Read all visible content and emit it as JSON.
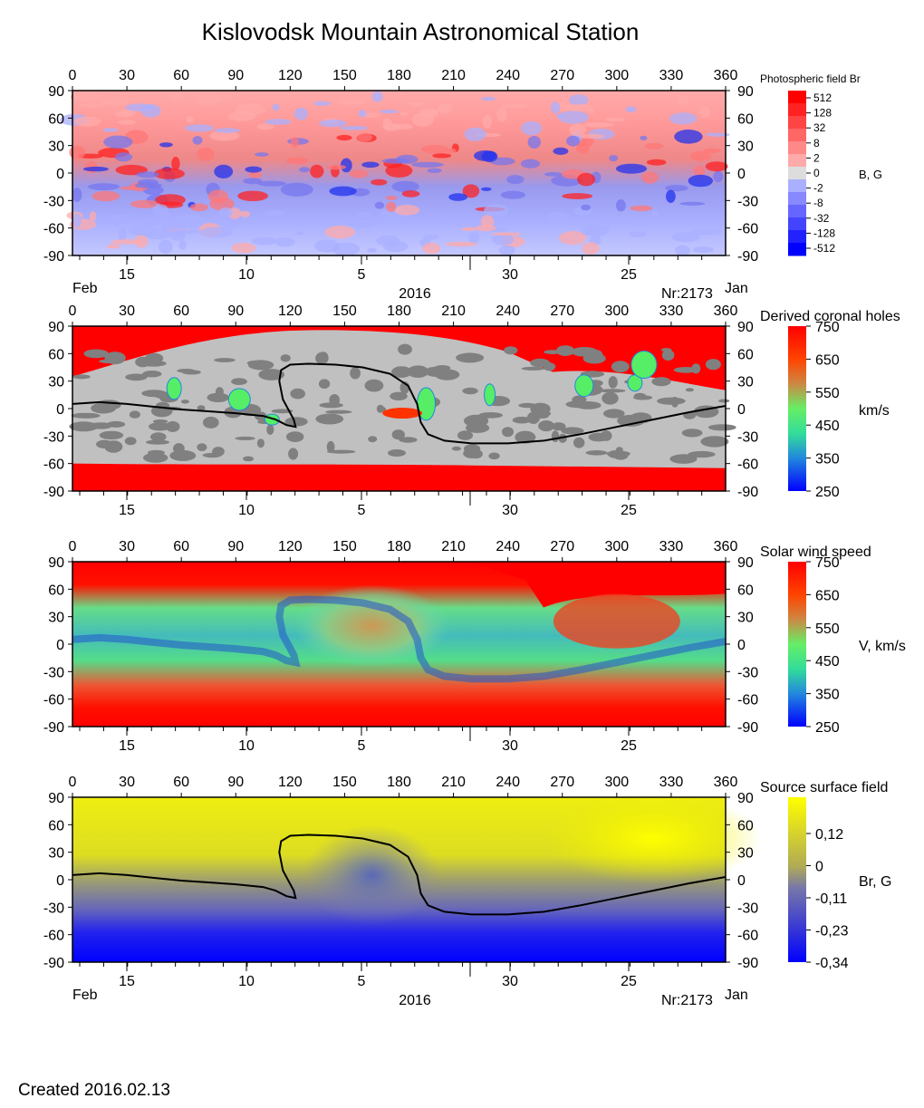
{
  "title": "Kislovodsk Mountain Astronomical Station",
  "footer": {
    "created": "Created  2016.02.13"
  },
  "colors": {
    "red": "#ff0000",
    "blue": "#0000ff",
    "light_gray": "#c0c0c0",
    "dark_gray": "#808080",
    "yellow": "#ffff00",
    "green": "#55ee66",
    "cyan": "#22bbcc",
    "pink": "#ffaaaa",
    "lilac": "#aab0ff"
  },
  "chart_data": [
    {
      "type": "heatmap",
      "title": "Photospheric field Br",
      "unit_label": "B, G",
      "x_top_ticks": [
        "0",
        "30",
        "60",
        "90",
        "120",
        "150",
        "180",
        "210",
        "240",
        "270",
        "300",
        "330",
        "360"
      ],
      "x_range": [
        0,
        360
      ],
      "y_ticks": [
        "90",
        "60",
        "30",
        "0",
        "-30",
        "-60",
        "-90"
      ],
      "y_range": [
        -90,
        90
      ],
      "date_ticks": [
        "15",
        "10",
        "5",
        "30",
        "25"
      ],
      "date_labels": {
        "left": "Feb",
        "center": "2016",
        "right_nr": "Nr:2173",
        "right": "Jan"
      },
      "colorbar": {
        "type": "diverging-stepped",
        "labels": [
          "512",
          "128",
          "32",
          "8",
          "2",
          "0",
          "-2",
          "-8",
          "-32",
          "-128",
          "-512"
        ]
      }
    },
    {
      "type": "heatmap",
      "title": "Derived coronal holes",
      "unit_label": "km/s",
      "x_top_ticks": [
        "0",
        "30",
        "60",
        "90",
        "120",
        "150",
        "180",
        "210",
        "240",
        "270",
        "300",
        "330",
        "360"
      ],
      "x_range": [
        0,
        360
      ],
      "y_ticks": [
        "90",
        "60",
        "30",
        "0",
        "-30",
        "-60",
        "-90"
      ],
      "y_range": [
        -90,
        90
      ],
      "date_ticks": [
        "15",
        "10",
        "5",
        "30",
        "25"
      ],
      "colorbar": {
        "type": "speed",
        "labels": [
          "750",
          "650",
          "550",
          "450",
          "350",
          "250"
        ],
        "range": [
          250,
          750
        ]
      },
      "neutral_line": true
    },
    {
      "type": "heatmap",
      "title": "Solar wind speed",
      "unit_label": "V, km/s",
      "x_top_ticks": [
        "0",
        "30",
        "60",
        "90",
        "120",
        "150",
        "180",
        "210",
        "240",
        "270",
        "300",
        "330",
        "360"
      ],
      "x_range": [
        0,
        360
      ],
      "y_ticks": [
        "90",
        "60",
        "30",
        "0",
        "-30",
        "-60",
        "-90"
      ],
      "y_range": [
        -90,
        90
      ],
      "date_ticks": [
        "15",
        "10",
        "5",
        "30",
        "25"
      ],
      "colorbar": {
        "type": "speed",
        "labels": [
          "750",
          "650",
          "550",
          "450",
          "350",
          "250"
        ],
        "range": [
          250,
          750
        ]
      }
    },
    {
      "type": "heatmap",
      "title": "Source surface field",
      "unit_label": "Br, G",
      "x_top_ticks": [
        "0",
        "30",
        "60",
        "90",
        "120",
        "150",
        "180",
        "210",
        "240",
        "270",
        "300",
        "330",
        "360"
      ],
      "x_range": [
        0,
        360
      ],
      "y_ticks": [
        "90",
        "60",
        "30",
        "0",
        "-30",
        "-60",
        "-90"
      ],
      "y_range": [
        -90,
        90
      ],
      "date_ticks": [
        "15",
        "10",
        "5",
        "30",
        "25"
      ],
      "date_labels": {
        "left": "Feb",
        "center": "2016",
        "right_nr": "Nr:2173",
        "right": "Jan"
      },
      "colorbar": {
        "type": "source",
        "labels": [
          "0,12",
          "0",
          "-0,11",
          "-0,23",
          "-0,34"
        ]
      },
      "neutral_line": true
    }
  ],
  "neutral_line": {
    "lon": [
      0,
      15,
      30,
      45,
      60,
      75,
      90,
      105,
      112,
      118,
      123,
      122,
      116,
      114,
      115,
      120,
      130,
      145,
      160,
      175,
      185,
      190,
      192,
      196,
      205,
      220,
      240,
      260,
      280,
      300,
      320,
      340,
      360
    ],
    "lat": [
      5,
      7,
      5,
      2,
      -1,
      -3,
      -5,
      -8,
      -12,
      -18,
      -20,
      -12,
      10,
      30,
      42,
      48,
      49,
      48,
      45,
      38,
      25,
      5,
      -15,
      -28,
      -35,
      -38,
      -38,
      -35,
      -28,
      -20,
      -12,
      -4,
      3
    ]
  }
}
